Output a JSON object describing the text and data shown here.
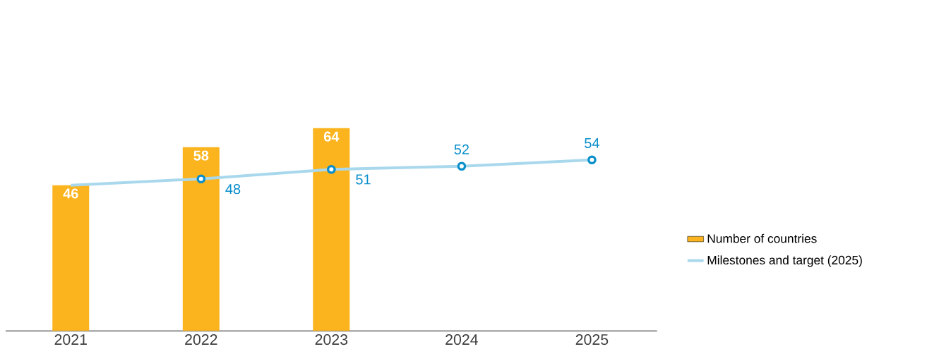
{
  "chart_data": {
    "type": "bar",
    "categories": [
      "2021",
      "2022",
      "2023",
      "2024",
      "2025"
    ],
    "series": [
      {
        "name": "Number of countries",
        "color": "#fbb41e",
        "values": [
          46,
          58,
          64,
          null,
          null
        ]
      },
      {
        "type": "line",
        "name": "Milestones and target (2025)",
        "color": "#0a8fcb",
        "values": [
          46,
          48,
          51,
          52,
          54
        ],
        "value_labels": [
          null,
          "48",
          "51",
          "52",
          "54"
        ],
        "marker": "circle"
      }
    ],
    "data_labels": true,
    "legend": "right"
  }
}
